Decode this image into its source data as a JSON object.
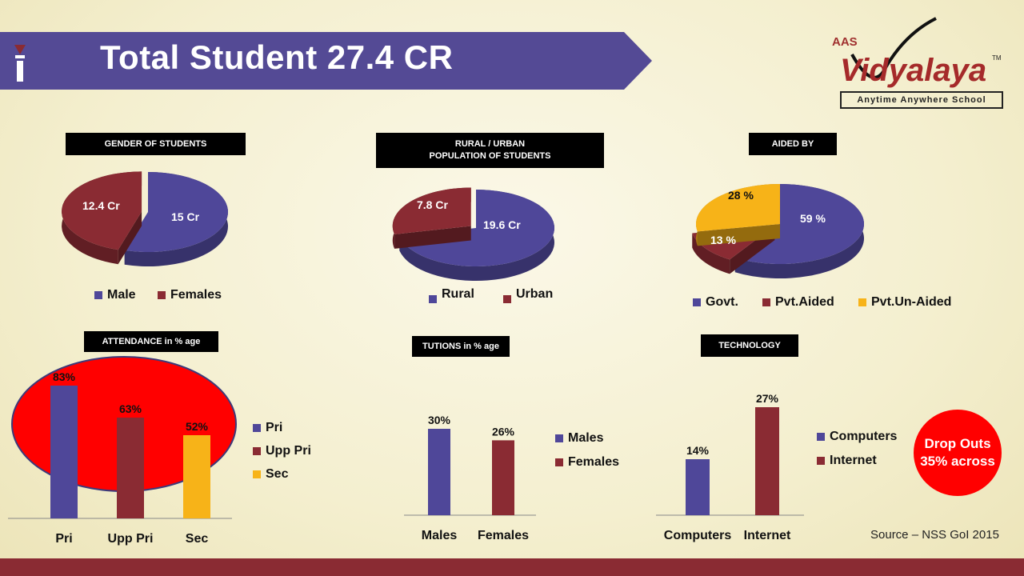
{
  "header": {
    "title": "Total Student 27.4 CR",
    "logo_small": "AAS",
    "logo_main": "Vidyalaya",
    "logo_tm": "TM",
    "logo_tagline": "Anytime Anywhere School"
  },
  "colors": {
    "banner": "#544a95",
    "purple": "#4f4799",
    "maroon": "#8a2b33",
    "amber": "#f7b318",
    "red": "#ff0000",
    "footer": "#8a2b33"
  },
  "footer": {
    "source": "Source – NSS GoI 2015"
  },
  "dropout": {
    "text": "Drop Outs 35% across"
  },
  "chart_data": [
    {
      "type": "pie",
      "title": "GENDER OF STUDENTS",
      "labels": [
        "Male",
        "Females"
      ],
      "values": [
        15,
        12.4
      ],
      "value_labels": [
        "15 Cr",
        "12.4 Cr"
      ],
      "legend": [
        "Male",
        "Females"
      ],
      "legend_position": "bottom"
    },
    {
      "type": "pie",
      "title": "RURAL / URBAN POPULATION OF STUDENTS",
      "title_lines": [
        "RURAL / URBAN",
        "POPULATION OF STUDENTS"
      ],
      "labels": [
        "Rural",
        "Urban"
      ],
      "values": [
        19.6,
        7.8
      ],
      "value_labels": [
        "19.6 Cr",
        "7.8 Cr"
      ],
      "legend": [
        "Rural",
        "Urban"
      ],
      "legend_position": "bottom"
    },
    {
      "type": "pie",
      "title": "AIDED BY",
      "labels": [
        "Govt.",
        "Pvt.Aided",
        "Pvt.Un-Aided"
      ],
      "values": [
        59,
        13,
        28
      ],
      "value_labels": [
        "59 %",
        "13  %",
        "28  %"
      ],
      "legend": [
        "Govt.",
        "Pvt.Aided",
        "Pvt.Un-Aided"
      ],
      "legend_position": "bottom"
    },
    {
      "type": "bar",
      "title": "ATTENDANCE in % age",
      "categories": [
        "Pri",
        "Upp Pri",
        "Sec"
      ],
      "values": [
        83,
        63,
        52
      ],
      "value_labels": [
        "83%",
        "63%",
        "52%"
      ],
      "legend": [
        "Pri",
        "Upp Pri",
        "Sec"
      ],
      "legend_position": "right",
      "ylim": [
        0,
        100
      ]
    },
    {
      "type": "bar",
      "title": "TUTIONS in % age",
      "categories": [
        "Males",
        "Females"
      ],
      "values": [
        30,
        26
      ],
      "value_labels": [
        "30%",
        "26%"
      ],
      "legend": [
        "Males",
        "Females"
      ],
      "legend_position": "right"
    },
    {
      "type": "bar",
      "title": "TECHNOLOGY",
      "categories": [
        "Computers",
        "Internet"
      ],
      "values": [
        14,
        27
      ],
      "value_labels": [
        "14%",
        "27%"
      ],
      "legend": [
        "Computers",
        "Internet"
      ],
      "legend_position": "right"
    }
  ]
}
